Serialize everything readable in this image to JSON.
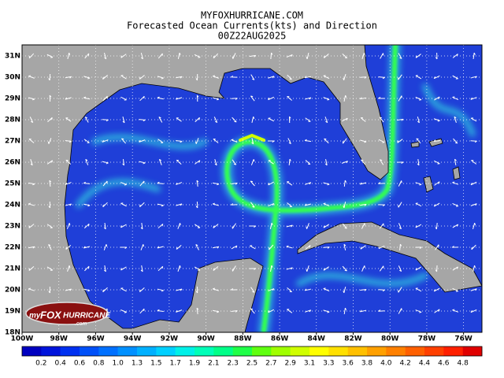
{
  "header": {
    "title": "MYFOXHURRICANE.COM",
    "subtitle": "Forecasted Ocean Currents(kts) and Direction",
    "date": "00Z22AUG2025"
  },
  "map": {
    "lon_labels": [
      "100W",
      "98W",
      "96W",
      "94W",
      "92W",
      "90W",
      "88W",
      "86W",
      "84W",
      "82W",
      "80W",
      "78W",
      "76W"
    ],
    "lat_labels": [
      "31N",
      "30N",
      "29N",
      "28N",
      "27N",
      "26N",
      "25N",
      "24N",
      "23N",
      "22N",
      "21N",
      "20N",
      "19N",
      "18N"
    ],
    "ocean_color": "#1f3fd8",
    "land_color": "#a6a6a6",
    "grid": true
  },
  "colorbar": {
    "labels": [
      "0.2",
      "0.4",
      "0.6",
      "0.8",
      "1.0",
      "1.3",
      "1.5",
      "1.7",
      "1.9",
      "2.1",
      "2.3",
      "2.5",
      "2.7",
      "2.9",
      "3.1",
      "3.3",
      "3.6",
      "3.8",
      "4.0",
      "4.2",
      "4.4",
      "4.6",
      "4.8"
    ],
    "colors": [
      "#0000c0",
      "#0014dc",
      "#0030f0",
      "#0050f8",
      "#0070ff",
      "#0090ff",
      "#00b0ff",
      "#00d0ff",
      "#00f0e8",
      "#00ffb8",
      "#00ff88",
      "#20ff48",
      "#60ff10",
      "#a0ff00",
      "#d0ff00",
      "#ffff00",
      "#ffe000",
      "#ffc000",
      "#ffa000",
      "#ff8000",
      "#ff6000",
      "#ff4000",
      "#ff2000",
      "#e00000"
    ]
  },
  "logo": {
    "prefix": "my",
    "brand": "FOX",
    "name": "HURRICANE",
    "suffix": ".com"
  }
}
